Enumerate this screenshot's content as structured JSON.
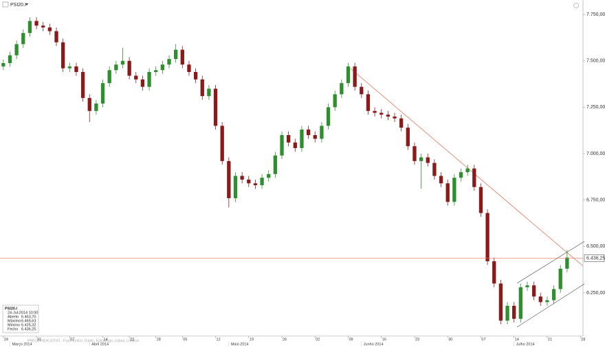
{
  "header": {
    "symbol": "PSI20.I"
  },
  "footer": "PREÇO INDICATIVO - Fuso horário: Dublin, Edimburgo, Lisboa, Londres",
  "info": {
    "title": "PSI20.I",
    "date": "24-Jul-2014 10:00",
    "rows": [
      [
        "Aberto",
        "6.463,70"
      ],
      [
        "Máximo",
        "6.465,63"
      ],
      [
        "Mínimo",
        "6.425,32"
      ],
      [
        "Fecho",
        "6.436,25"
      ]
    ]
  },
  "chart_data": {
    "type": "candlestick",
    "up_color": "#2f8f2f",
    "down_color": "#8b1a1a",
    "last_color": "#e8735a",
    "last": {
      "value": 6436.25,
      "label": "6.436,25"
    },
    "ylim": [
      6017,
      7828
    ],
    "yticks": [
      {
        "value": 6250,
        "label": "6.250,00"
      },
      {
        "value": 6500,
        "label": "6.500,00"
      },
      {
        "value": 6750,
        "label": "6.750,00"
      },
      {
        "value": 7000,
        "label": "7.000,00"
      },
      {
        "value": 7250,
        "label": "7.250,00"
      },
      {
        "value": 7500,
        "label": "7.500,00"
      },
      {
        "value": 7750,
        "label": "7.750,00"
      }
    ],
    "xlim": [
      -0.5,
      87.4
    ],
    "xticks": [
      {
        "value": 0,
        "label": "24"
      },
      {
        "value": 5,
        "label": "31"
      },
      {
        "value": 10,
        "label": "07"
      },
      {
        "value": 15,
        "label": "14"
      },
      {
        "value": 19,
        "label": "22"
      },
      {
        "value": 23,
        "label": "28"
      },
      {
        "value": 27,
        "label": "05"
      },
      {
        "value": 32,
        "label": "12"
      },
      {
        "value": 37,
        "label": "19"
      },
      {
        "value": 42,
        "label": "26"
      },
      {
        "value": 47,
        "label": "02"
      },
      {
        "value": 52,
        "label": "09"
      },
      {
        "value": 57,
        "label": "16"
      },
      {
        "value": 62,
        "label": "23"
      },
      {
        "value": 67,
        "label": "30"
      },
      {
        "value": 72,
        "label": "07"
      },
      {
        "value": 77,
        "label": "14"
      },
      {
        "value": 82,
        "label": "21"
      },
      {
        "value": 87,
        "label": "28"
      }
    ],
    "months": [
      {
        "value": 1,
        "label": "Março 2014"
      },
      {
        "value": 13,
        "label": "Abril 2014"
      },
      {
        "value": 34,
        "label": "Maio 2014"
      },
      {
        "value": 54,
        "label": "Junho 2014"
      },
      {
        "value": 77,
        "label": "Julho 2014"
      }
    ],
    "open": [
      7470,
      7488,
      7530,
      7590,
      7650,
      7715,
      7690,
      7680,
      7660,
      7600,
      7460,
      7470,
      7440,
      7300,
      7230,
      7270,
      7380,
      7450,
      7480,
      7500,
      7420,
      7400,
      7360,
      7440,
      7450,
      7480,
      7510,
      7560,
      7480,
      7440,
      7400,
      7310,
      7350,
      7150,
      6960,
      6760,
      6880,
      6860,
      6840,
      6830,
      6870,
      6890,
      6990,
      7100,
      7060,
      7030,
      7130,
      7100,
      7080,
      7150,
      7250,
      7320,
      7380,
      7470,
      7360,
      7320,
      7230,
      7220,
      7210,
      7200,
      7190,
      7140,
      7040,
      6960,
      6980,
      6950,
      6880,
      6840,
      6740,
      6870,
      6900,
      6920,
      6820,
      6680,
      6420,
      6300,
      6100,
      6180,
      6110,
      6280,
      6290,
      6230,
      6200,
      6210,
      6270,
      6380
    ],
    "high": [
      7508,
      7550,
      7610,
      7670,
      7735,
      7735,
      7710,
      7700,
      7680,
      7620,
      7490,
      7490,
      7460,
      7320,
      7290,
      7400,
      7470,
      7500,
      7570,
      7520,
      7440,
      7420,
      7460,
      7470,
      7500,
      7530,
      7590,
      7580,
      7500,
      7460,
      7420,
      7370,
      7370,
      7170,
      6980,
      6900,
      6900,
      6880,
      6860,
      6890,
      6910,
      7010,
      7120,
      7120,
      7080,
      7150,
      7150,
      7120,
      7170,
      7270,
      7340,
      7400,
      7490,
      7490,
      7380,
      7340,
      7250,
      7240,
      7230,
      7220,
      7210,
      7160,
      7060,
      7000,
      7000,
      6970,
      6900,
      6860,
      6890,
      6920,
      6940,
      6940,
      6840,
      6700,
      6440,
      6320,
      6200,
      6200,
      6300,
      6310,
      6310,
      6250,
      6230,
      6290,
      6400,
      6480
    ],
    "low": [
      7450,
      7468,
      7510,
      7570,
      7630,
      7670,
      7660,
      7640,
      7580,
      7440,
      7440,
      7420,
      7280,
      7170,
      7210,
      7250,
      7360,
      7430,
      7460,
      7400,
      7380,
      7340,
      7340,
      7420,
      7430,
      7460,
      7490,
      7460,
      7420,
      7380,
      7290,
      7290,
      7130,
      6940,
      6710,
      6740,
      6840,
      6820,
      6810,
      6810,
      6850,
      6870,
      6970,
      7040,
      7010,
      7010,
      7080,
      7060,
      7060,
      7130,
      7230,
      7300,
      7360,
      7340,
      7300,
      7210,
      7200,
      7190,
      7180,
      7170,
      7120,
      7020,
      6940,
      6810,
      6930,
      6860,
      6820,
      6720,
      6720,
      6850,
      6880,
      6800,
      6660,
      6400,
      6280,
      6080,
      6080,
      6090,
      6090,
      6260,
      6210,
      6180,
      6180,
      6190,
      6250,
      6360
    ],
    "close": [
      7488,
      7530,
      7590,
      7650,
      7715,
      7690,
      7680,
      7660,
      7600,
      7460,
      7470,
      7440,
      7300,
      7230,
      7270,
      7380,
      7450,
      7480,
      7500,
      7420,
      7400,
      7360,
      7440,
      7450,
      7480,
      7510,
      7560,
      7480,
      7440,
      7400,
      7310,
      7350,
      7150,
      6960,
      6760,
      6880,
      6860,
      6840,
      6830,
      6870,
      6890,
      6990,
      7100,
      7060,
      7030,
      7130,
      7100,
      7080,
      7150,
      7250,
      7320,
      7380,
      7470,
      7360,
      7320,
      7230,
      7220,
      7210,
      7200,
      7190,
      7140,
      7040,
      6960,
      6980,
      6950,
      6880,
      6840,
      6740,
      6870,
      6900,
      6920,
      6820,
      6680,
      6420,
      6300,
      6100,
      6180,
      6110,
      6280,
      6290,
      6230,
      6200,
      6210,
      6270,
      6380,
      6440
    ]
  }
}
